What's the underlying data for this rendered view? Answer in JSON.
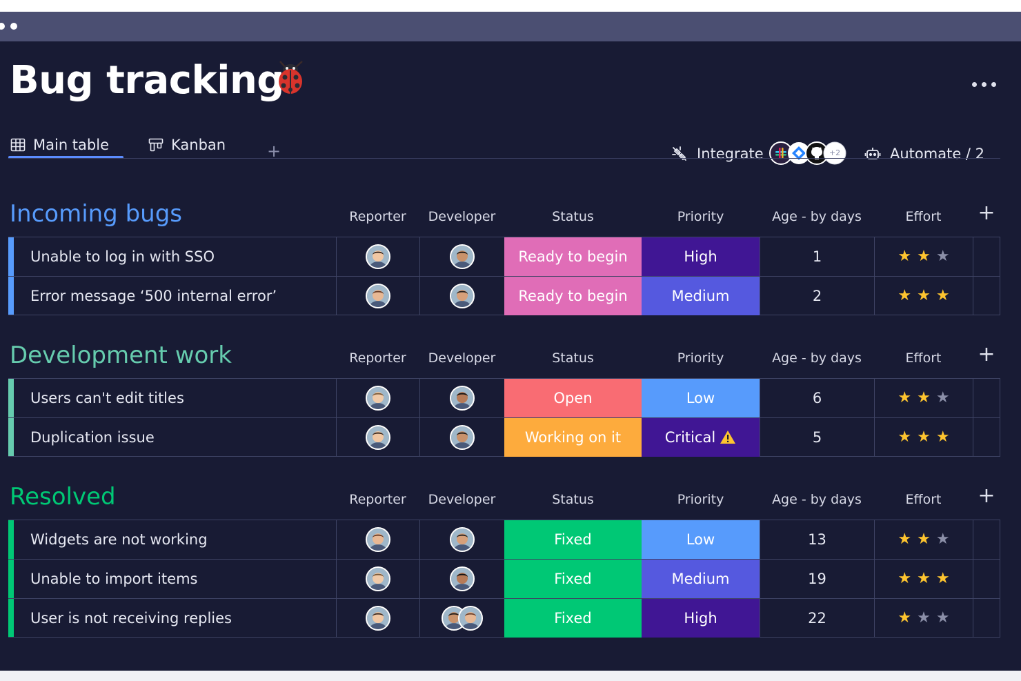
{
  "page": {
    "title": "Bug tracking",
    "title_icon": "ladybug-icon",
    "more_icon": "more-horizontal-icon"
  },
  "tabs": [
    {
      "label": "Main table",
      "icon": "table-icon",
      "active": true
    },
    {
      "label": "Kanban",
      "icon": "kanban-icon",
      "active": false
    }
  ],
  "tab_add": "+",
  "toolbar": {
    "integrate_label": "Integrate",
    "integrate_icons": [
      "slack-icon",
      "jira-icon",
      "github-icon"
    ],
    "integrate_more": "+2",
    "automate_label": "Automate / 2"
  },
  "columns": [
    "Reporter",
    "Developer",
    "Status",
    "Priority",
    "Age - by days",
    "Effort"
  ],
  "col_add": "+",
  "colors": {
    "incoming": "#579bfc",
    "development": "#66ccae",
    "resolved": "#00c875",
    "ready_to_begin": "#e06db7",
    "open": "#f96c73",
    "working_on_it": "#fdab3d",
    "fixed": "#00c875",
    "high": "#401694",
    "medium": "#5559df",
    "low": "#579bfc",
    "critical": "#401694",
    "star_on": "#fdc42f",
    "star_off": "#8b8fa8"
  },
  "groups": [
    {
      "key": "incoming",
      "title": "Incoming bugs",
      "rows": [
        {
          "name": "Unable to log in with SSO",
          "status": "Ready to begin",
          "status_key": "ready_to_begin",
          "priority": "High",
          "priority_key": "high",
          "age": "1",
          "effort": 2,
          "developers": 1
        },
        {
          "name": "Error message ‘500 internal error’",
          "status": "Ready to begin",
          "status_key": "ready_to_begin",
          "priority": "Medium",
          "priority_key": "medium",
          "age": "2",
          "effort": 3,
          "developers": 1
        }
      ]
    },
    {
      "key": "development",
      "title": "Development work",
      "rows": [
        {
          "name": "Users can't edit titles",
          "status": "Open",
          "status_key": "open",
          "priority": "Low",
          "priority_key": "low",
          "age": "6",
          "effort": 2,
          "developers": 1
        },
        {
          "name": "Duplication issue",
          "status": "Working on it",
          "status_key": "working_on_it",
          "priority": "Critical",
          "priority_key": "critical",
          "priority_icon": "warning-icon",
          "age": "5",
          "effort": 3,
          "developers": 1
        }
      ]
    },
    {
      "key": "resolved",
      "title": "Resolved",
      "rows": [
        {
          "name": "Widgets are not working",
          "status": "Fixed",
          "status_key": "fixed",
          "priority": "Low",
          "priority_key": "low",
          "age": "13",
          "effort": 2,
          "developers": 1
        },
        {
          "name": "Unable to import items",
          "status": "Fixed",
          "status_key": "fixed",
          "priority": "Medium",
          "priority_key": "medium",
          "age": "19",
          "effort": 3,
          "developers": 1
        },
        {
          "name": "User is not receiving replies",
          "status": "Fixed",
          "status_key": "fixed",
          "priority": "High",
          "priority_key": "high",
          "age": "22",
          "effort": 1,
          "developers": 2
        }
      ]
    }
  ]
}
